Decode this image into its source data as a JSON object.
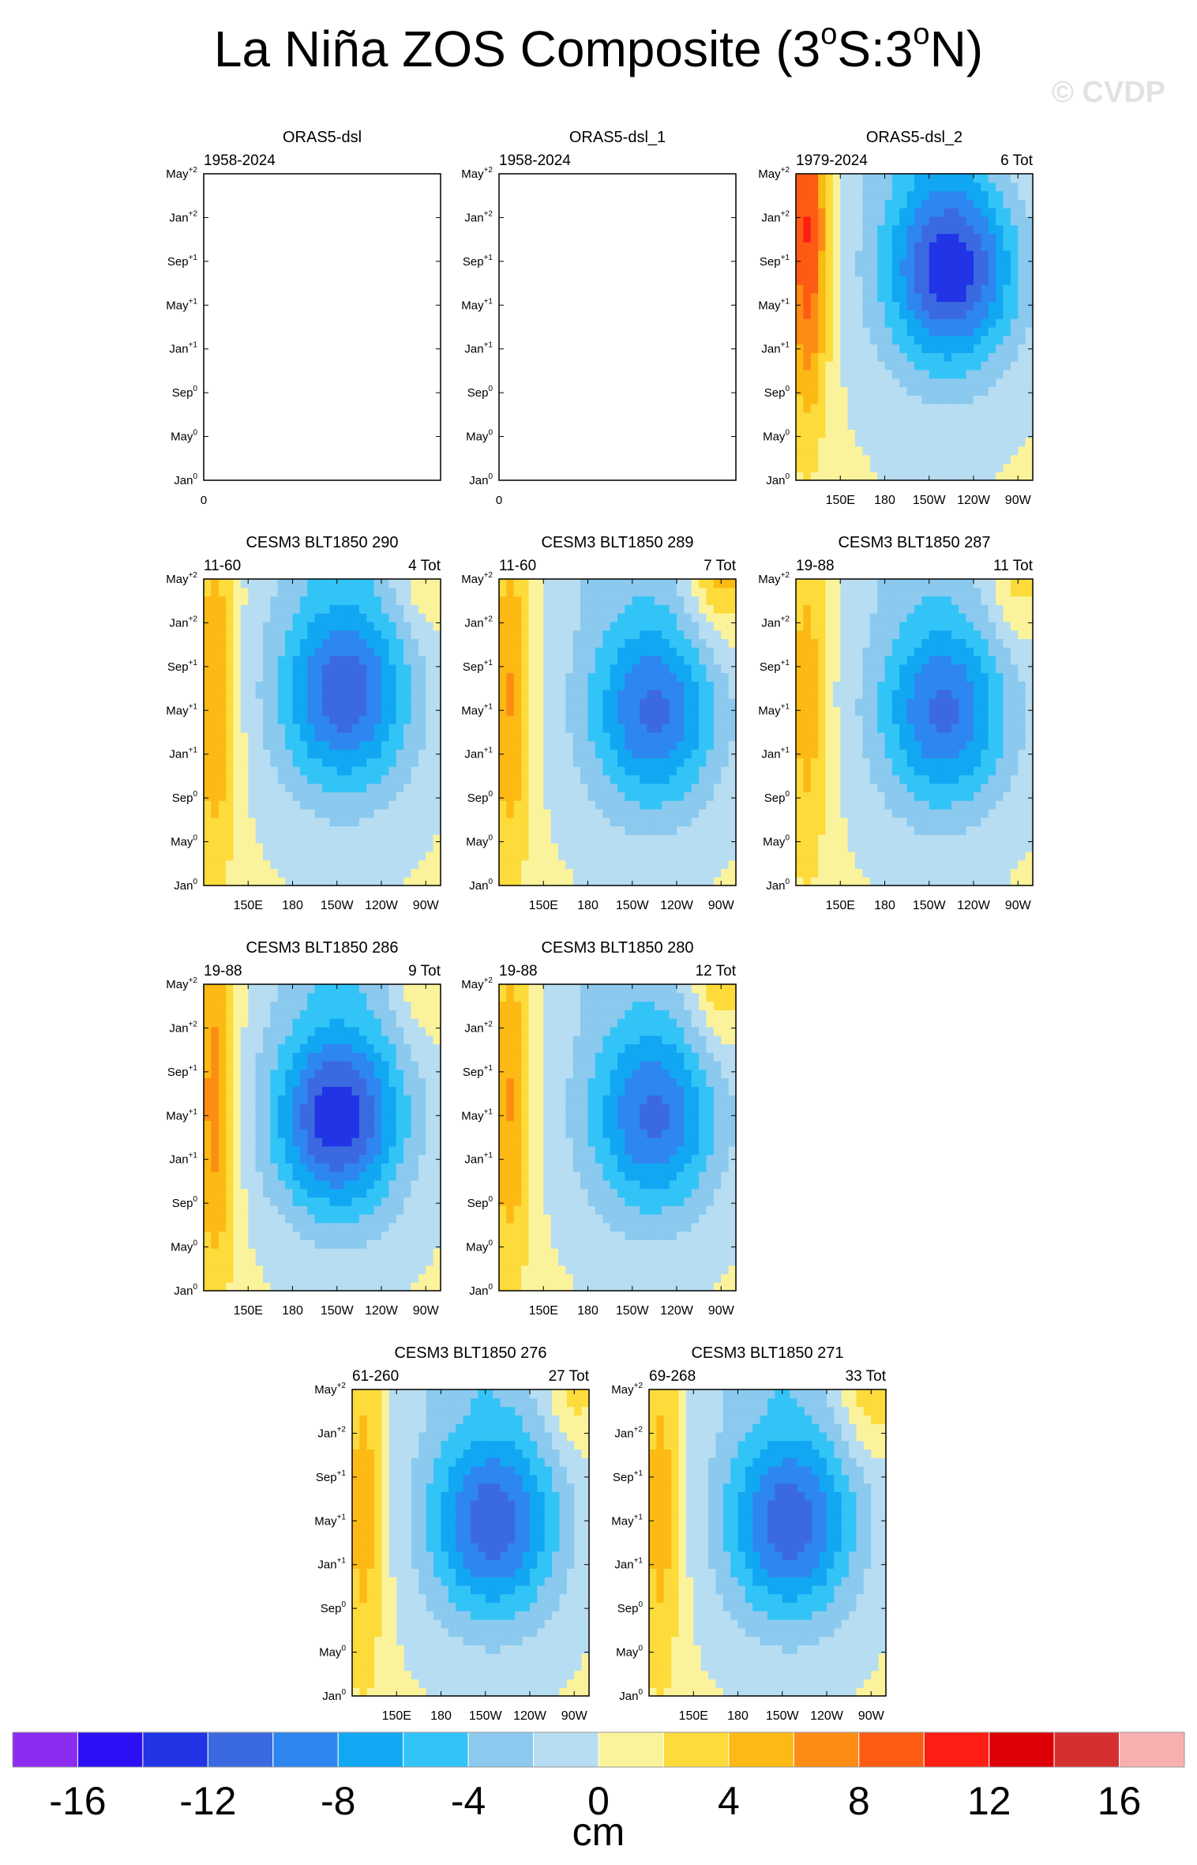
{
  "page": {
    "title_main": "La Niña ZOS Composite (3",
    "title_sup1": "o",
    "title_mid": "S:3",
    "title_sup2": "o",
    "title_end": "N)",
    "watermark": "© CVDP",
    "unit": "cm"
  },
  "colors": {
    "scale": [
      "#8c2cf0",
      "#2d10f5",
      "#2134e6",
      "#3b6ae0",
      "#2e86f0",
      "#12a7f2",
      "#33c4f7",
      "#8bc9ee",
      "#b7ddf2",
      "#fbf39c",
      "#fcdb3b",
      "#fdb914",
      "#fd8c14",
      "#fd5a14",
      "#fd1e14",
      "#dc0006",
      "#d62f2f",
      "#f9b0b0"
    ]
  },
  "chart_data": {
    "type": "heatmap",
    "title": "La Niña ZOS Composite (3°S:3°N)",
    "colorbar": {
      "label": "cm",
      "levels": [
        -16,
        -14,
        -12,
        -10,
        -8,
        -6,
        -4,
        -2,
        0,
        2,
        4,
        6,
        8,
        10,
        12,
        14,
        16
      ],
      "tick_labels": [
        "-16",
        "-12",
        "-8",
        "-4",
        "0",
        "4",
        "8",
        "12",
        "16"
      ]
    },
    "y_ticks": [
      "Jan",
      "May",
      "Sep",
      "Jan",
      "May",
      "Sep",
      "Jan",
      "May"
    ],
    "y_ticks_sup": [
      "0",
      "0",
      "0",
      "+1",
      "+1",
      "+1",
      "+2",
      "+2"
    ],
    "x_ticks": [
      "150E",
      "180",
      "150W",
      "120W",
      "90W"
    ],
    "x_ticks_lon": [
      150,
      180,
      210,
      240,
      270
    ],
    "x_range_lon": [
      120,
      280
    ],
    "panels": [
      {
        "title": "ORAS5-dsl",
        "left": "1958-2024",
        "right": "",
        "empty": true,
        "empty_tick": "0"
      },
      {
        "title": "ORAS5-dsl_1",
        "left": "1958-2024",
        "right": "",
        "empty": true,
        "empty_tick": "0"
      },
      {
        "title": "ORAS5-dsl_2",
        "left": "1979-2024",
        "right": "6 Tot",
        "empty": false,
        "min_value": -12,
        "min_lon": 225,
        "min_month": 11,
        "west_peak": 10,
        "west_peak_month": 13,
        "east_warm": 2,
        "east_warm_month": 20
      },
      {
        "title": "CESM3 BLT1850 290",
        "left": "11-60",
        "right": "4 Tot",
        "empty": false,
        "min_value": -10,
        "min_lon": 215,
        "min_month": 10,
        "west_peak": 6,
        "west_peak_month": 10,
        "east_warm": 3,
        "east_warm_month": 17
      },
      {
        "title": "CESM3 BLT1850 289",
        "left": "11-60",
        "right": "7 Tot",
        "empty": false,
        "min_value": -9,
        "min_lon": 225,
        "min_month": 9,
        "west_peak": 6,
        "west_peak_month": 10,
        "east_warm": 6,
        "east_warm_month": 17
      },
      {
        "title": "CESM3 BLT1850 287",
        "left": "19-88",
        "right": "11 Tot",
        "empty": false,
        "min_value": -9,
        "min_lon": 220,
        "min_month": 9,
        "west_peak": 5,
        "west_peak_month": 10,
        "east_warm": 4,
        "east_warm_month": 17
      },
      {
        "title": "CESM3 BLT1850 286",
        "left": "19-88",
        "right": "9 Tot",
        "empty": false,
        "min_value": -12,
        "min_lon": 210,
        "min_month": 9,
        "west_peak": 7,
        "west_peak_month": 10,
        "east_warm": 3,
        "east_warm_month": 17
      },
      {
        "title": "CESM3 BLT1850 280",
        "left": "19-88",
        "right": "12 Tot",
        "empty": false,
        "min_value": -9,
        "min_lon": 225,
        "min_month": 9,
        "west_peak": 6,
        "west_peak_month": 10,
        "east_warm": 5,
        "east_warm_month": 17
      },
      {
        "title": "CESM3 BLT1850 276",
        "left": "61-260",
        "right": "27 Tot",
        "empty": false,
        "min_value": -10,
        "min_lon": 215,
        "min_month": 9,
        "west_peak": 5,
        "west_peak_month": 10,
        "east_warm": 4,
        "east_warm_month": 17
      },
      {
        "title": "CESM3 BLT1850 271",
        "left": "69-268",
        "right": "33 Tot",
        "empty": false,
        "min_value": -10,
        "min_lon": 215,
        "min_month": 9,
        "west_peak": 5,
        "west_peak_month": 10,
        "east_warm": 5,
        "east_warm_month": 17
      }
    ]
  }
}
